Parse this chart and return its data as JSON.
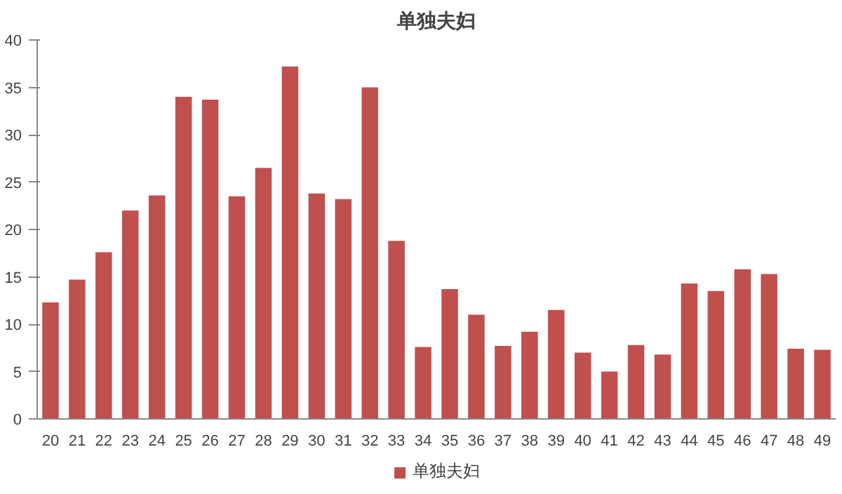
{
  "chart_data": {
    "type": "bar",
    "title": "单独夫妇",
    "categories": [
      "20",
      "21",
      "22",
      "23",
      "24",
      "25",
      "26",
      "27",
      "28",
      "29",
      "30",
      "31",
      "32",
      "33",
      "34",
      "35",
      "36",
      "37",
      "38",
      "39",
      "40",
      "41",
      "42",
      "43",
      "44",
      "45",
      "46",
      "47",
      "48",
      "49"
    ],
    "series": [
      {
        "name": "单独夫妇",
        "color": "#c0504d",
        "values": [
          12.3,
          14.7,
          17.6,
          22,
          23.6,
          34,
          33.7,
          23.5,
          26.5,
          37.2,
          23.8,
          23.2,
          35,
          18.8,
          7.6,
          13.7,
          11,
          7.7,
          9.2,
          11.5,
          7,
          5,
          7.8,
          6.8,
          14.3,
          13.5,
          15.8,
          15.3,
          7.4,
          7.3
        ]
      }
    ],
    "ylim": [
      0,
      40
    ],
    "yticks": [
      0,
      5,
      10,
      15,
      20,
      25,
      30,
      35,
      40
    ],
    "grid": false,
    "legend": "bottom"
  }
}
